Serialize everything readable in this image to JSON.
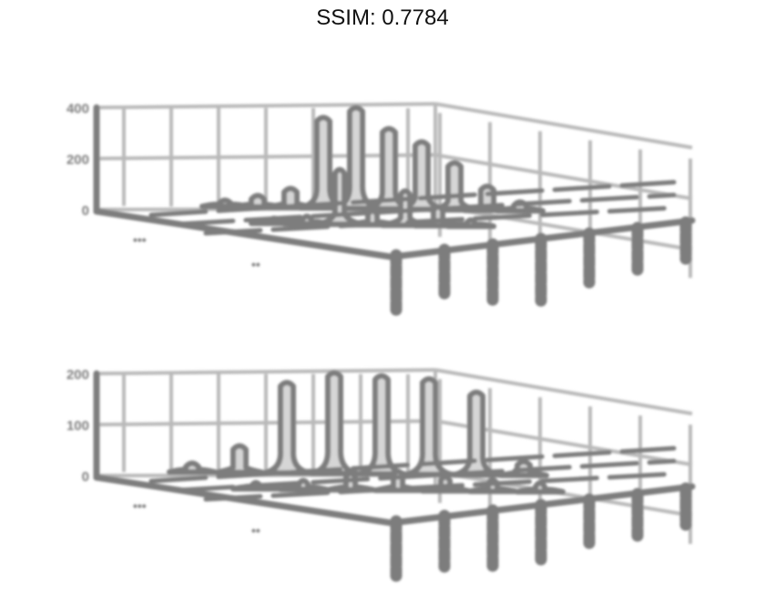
{
  "title": "SSIM: 0.7784",
  "colors": {
    "ink": "#7d7d7d",
    "grid": "#b9b9b9",
    "fill": "#d6d6d6",
    "dark": "#2a2a2a"
  },
  "chart_data": [
    {
      "type": "3d-surface-slices",
      "panel": "top",
      "z_ticks": [
        "400",
        "200",
        "0"
      ],
      "zlim": [
        0,
        400
      ],
      "grid": true,
      "x_label_mark": "•••",
      "y_label_mark": "••",
      "series": [
        {
          "name": "",
          "values": [
            0,
            10,
            30,
            60,
            340,
            380,
            300,
            250,
            170,
            80,
            20,
            0
          ]
        },
        {
          "name": "",
          "values": [
            0,
            0,
            5,
            15,
            200,
            40,
            120,
            60,
            10,
            0,
            0,
            0
          ]
        }
      ]
    },
    {
      "type": "3d-surface-slices",
      "panel": "bottom",
      "z_ticks": [
        "200",
        "100",
        "0"
      ],
      "zlim": [
        0,
        200
      ],
      "grid": true,
      "x_label_mark": "•••",
      "y_label_mark": "••",
      "series": [
        {
          "name": "",
          "values": [
            10,
            45,
            170,
            190,
            185,
            180,
            155,
            20
          ]
        },
        {
          "name": "",
          "values": [
            0,
            5,
            10,
            25,
            30,
            20,
            15,
            10
          ]
        }
      ]
    }
  ]
}
